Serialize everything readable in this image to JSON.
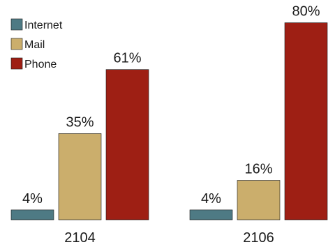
{
  "chart_data": {
    "type": "bar",
    "categories": [
      "2104",
      "2106"
    ],
    "series": [
      {
        "name": "Internet",
        "values": [
          4,
          4
        ],
        "labels": [
          "4%",
          "4%"
        ],
        "color": "#4e7a84"
      },
      {
        "name": "Mail",
        "values": [
          35,
          16
        ],
        "labels": [
          "35%",
          "16%"
        ],
        "color": "#cbae6c"
      },
      {
        "name": "Phone",
        "values": [
          61,
          80
        ],
        "labels": [
          "61%",
          "80%"
        ],
        "color": "#9e1f14"
      }
    ],
    "value_unit": "%",
    "legend_position": "top-left",
    "grid": false,
    "axes_visible": false,
    "ylim": [
      0,
      80
    ]
  }
}
